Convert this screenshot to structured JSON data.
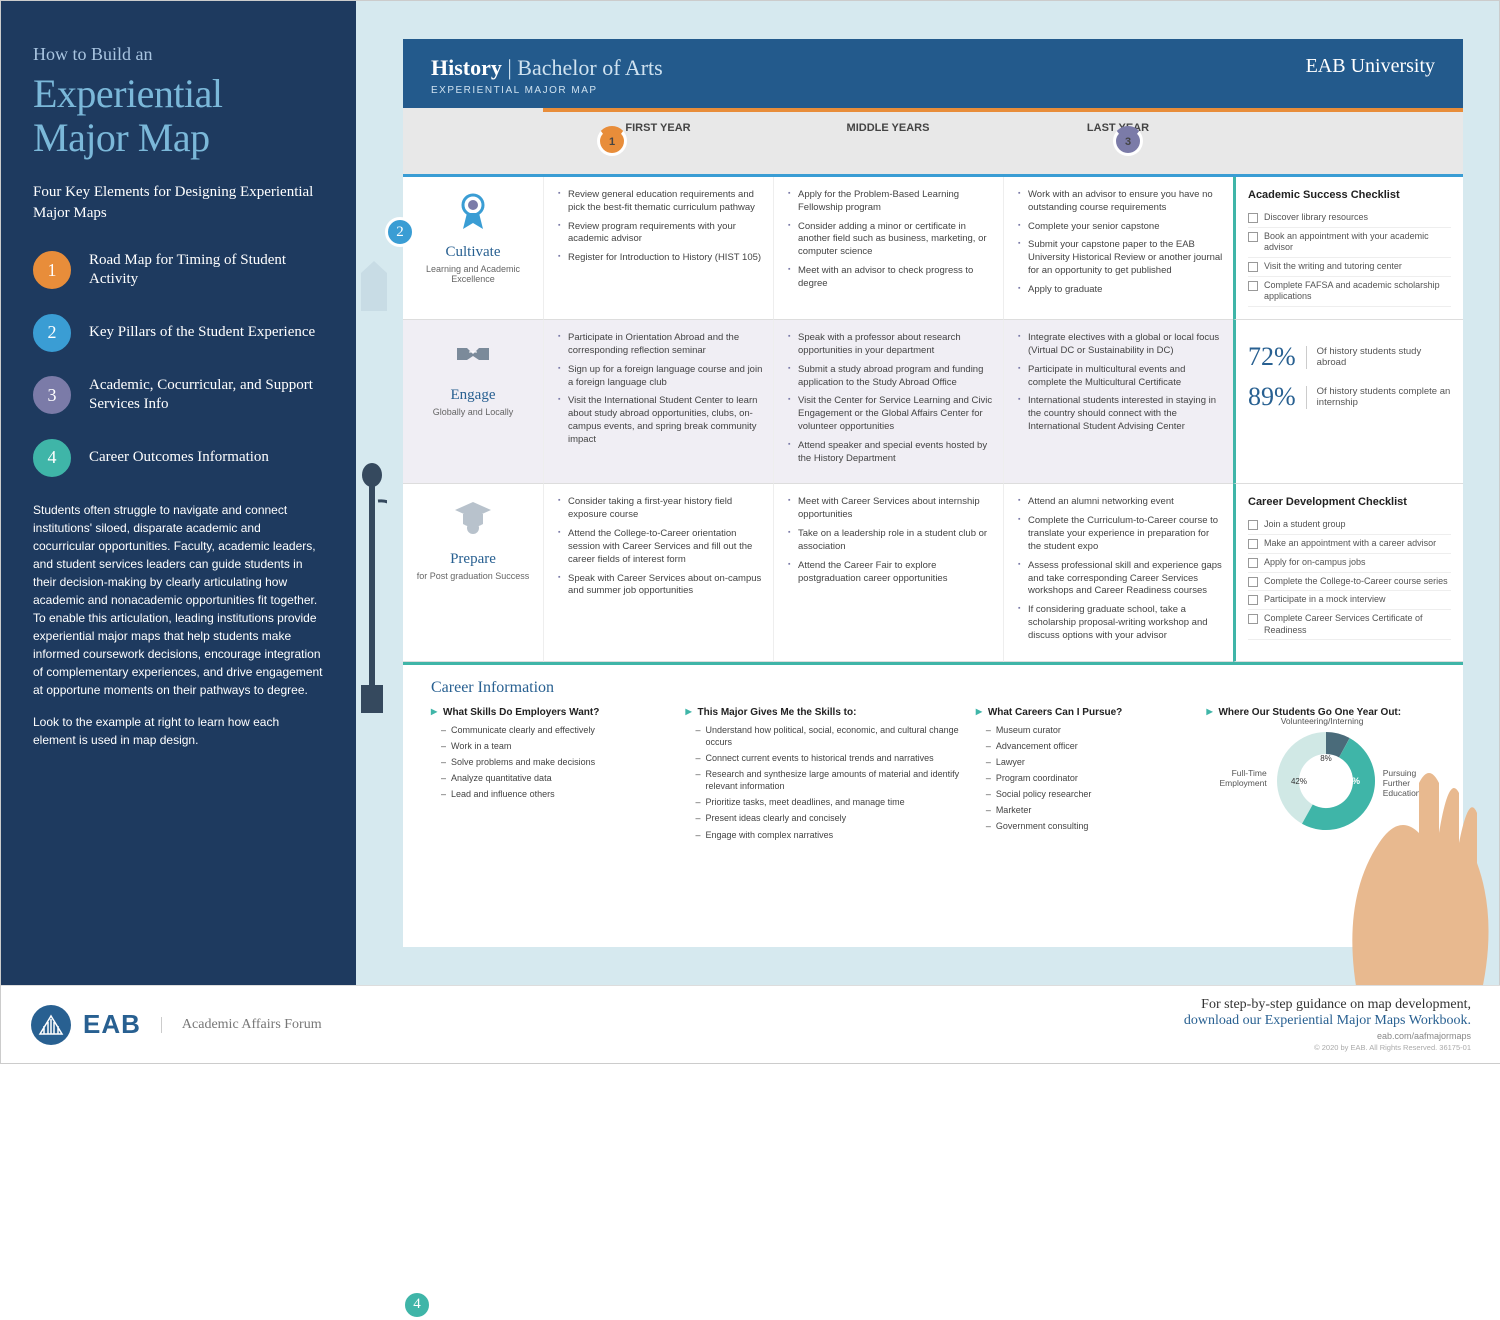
{
  "colors": {
    "sidebar_bg": "#1e3a5f",
    "header_bg": "#235a8c",
    "page_bg": "#d6e9ef",
    "orange": "#e88d3a",
    "blue": "#3a9dd4",
    "purple": "#7b7ba8",
    "teal": "#3fb5a8",
    "title_blue": "#7bb8d9",
    "text_blue": "#286091"
  },
  "sidebar": {
    "top": "How to Build an",
    "title": "Experiential Major Map",
    "subtitle": "Four Key Elements for Designing Experiential Major Maps",
    "items": [
      {
        "n": "1",
        "label": "Road Map for Timing of Student Activity"
      },
      {
        "n": "2",
        "label": "Key Pillars of the Student Experience"
      },
      {
        "n": "3",
        "label": "Academic, Cocurricular, and Support Services Info"
      },
      {
        "n": "4",
        "label": "Career Outcomes Information"
      }
    ],
    "para1": "Students often struggle to navigate and connect institutions' siloed, disparate academic and cocurricular opportunities. Faculty, academic leaders, and student services leaders can guide students in their decision-making by clearly articulating how academic and nonacademic opportunities fit together. To enable this articulation, leading institutions provide experiential major maps that help students make informed coursework decisions, encourage integration of complementary experiences, and drive engagement at opportune moments on their pathways to degree.",
    "para2": "Look to the example at right to learn how each element is used in map design."
  },
  "header": {
    "major": "History",
    "degree": "Bachelor of Arts",
    "sub": "EXPERIENTIAL MAJOR MAP",
    "uni": "EAB University"
  },
  "years": [
    "FIRST YEAR",
    "MIDDLE YEARS",
    "LAST YEAR"
  ],
  "pillars": [
    {
      "title": "Cultivate",
      "sub": "Learning and Academic Excellence",
      "icon": "ribbon"
    },
    {
      "title": "Engage",
      "sub": "Globally and Locally",
      "icon": "handshake"
    },
    {
      "title": "Prepare",
      "sub": "for Post graduation Success",
      "icon": "gradcap"
    }
  ],
  "cells": {
    "cultivate": {
      "first": [
        "Review general education requirements and pick the best-fit thematic curriculum pathway",
        "Review program requirements with your academic advisor",
        "Register for Introduction to History (HIST 105)"
      ],
      "middle": [
        "Apply for the Problem-Based Learning Fellowship program",
        "Consider adding a minor or certificate in another field such as business, marketing, or computer science",
        "Meet with an advisor to check progress to degree"
      ],
      "last": [
        "Work with an advisor to ensure you have no outstanding course requirements",
        "Complete your senior capstone",
        "Submit your capstone paper to the EAB University Historical Review or another journal for an opportunity to get published",
        "Apply to graduate"
      ]
    },
    "engage": {
      "first": [
        "Participate in Orientation Abroad and the corresponding reflection seminar",
        "Sign up for a foreign language course and join a foreign language club",
        "Visit the International Student Center to learn about study abroad opportunities, clubs, on-campus events, and spring break community impact"
      ],
      "middle": [
        "Speak with a professor about research opportunities in your department",
        "Submit a study abroad program and funding application to the Study Abroad Office",
        "Visit the Center for Service Learning and Civic Engagement or the Global Affairs Center for volunteer opportunities",
        "Attend speaker and special events hosted by the History Department"
      ],
      "last": [
        "Integrate electives with a global or local focus (Virtual DC or Sustainability in DC)",
        "Participate in multicultural events and complete the Multicultural Certificate",
        "International students interested in staying in the country should connect with the International Student Advising Center"
      ]
    },
    "prepare": {
      "first": [
        "Consider taking a first-year history field exposure course",
        "Attend the College-to-Career orientation session with Career Services and fill out the career fields of interest form",
        "Speak with Career Services about on-campus and summer job opportunities"
      ],
      "middle": [
        "Meet with Career Services about internship opportunities",
        "Take on a leadership role in a student club or association",
        "Attend the Career Fair to explore postgraduation career opportunities"
      ],
      "last": [
        "Attend an alumni networking event",
        "Complete the Curriculum-to-Career course to translate your experience in preparation for the student expo",
        "Assess professional skill and experience gaps and take corresponding Career Services workshops and Career Readiness courses",
        "If considering graduate school, take a scholarship proposal-writing workshop and discuss options with your advisor"
      ]
    }
  },
  "side": {
    "academic": {
      "title": "Academic Success Checklist",
      "items": [
        "Discover library resources",
        "Book an appointment with your academic advisor",
        "Visit the writing and tutoring center",
        "Complete FAFSA and academic scholarship applications"
      ]
    },
    "stats": [
      {
        "n": "72%",
        "t": "Of history students study abroad"
      },
      {
        "n": "89%",
        "t": "Of history students complete an internship"
      }
    ],
    "career": {
      "title": "Career Development Checklist",
      "items": [
        "Join a student group",
        "Make an appointment with a career advisor",
        "Apply for on-campus jobs",
        "Complete the College-to-Career course series",
        "Participate in a mock interview",
        "Complete Career Services Certificate of Readiness"
      ]
    }
  },
  "career": {
    "title": "Career Information",
    "cols": [
      {
        "h": "What Skills Do Employers Want?",
        "items": [
          "Communicate clearly and effectively",
          "Work in a team",
          "Solve problems and make decisions",
          "Analyze quantitative data",
          "Lead and influence others"
        ]
      },
      {
        "h": "This Major Gives Me the Skills to:",
        "items": [
          "Understand how political, social, economic, and cultural change occurs",
          "Connect current events to historical trends and narratives",
          "Research and synthesize large amounts of material and identify relevant information",
          "Prioritize tasks, meet deadlines, and manage time",
          "Present ideas clearly and concisely",
          "Engage with complex narratives"
        ]
      },
      {
        "h": "What Careers Can I Pursue?",
        "items": [
          "Museum curator",
          "Advancement officer",
          "Lawyer",
          "Program coordinator",
          "Social policy researcher",
          "Marketer",
          "Government consulting"
        ]
      },
      {
        "h": "Where Our Students Go One Year Out:",
        "donut": true
      }
    ],
    "donut": {
      "segments": [
        {
          "label": "Volunteering/Interning",
          "value": 8,
          "color": "#4a6b7a"
        },
        {
          "label": "Pursuing Further Education",
          "value": 50,
          "color": "#3fb5a8"
        },
        {
          "label": "Full-Time Employment",
          "value": 42,
          "color": "#d0e8e5"
        }
      ]
    }
  },
  "footer": {
    "brand": "EAB",
    "sub": "Academic Affairs Forum",
    "r1": "For step-by-step guidance on map development,",
    "r2": "download our Experiential Major Maps Workbook.",
    "r3": "eab.com/aafmajormaps",
    "r4": "© 2020 by EAB. All Rights Reserved. 36175-01"
  }
}
